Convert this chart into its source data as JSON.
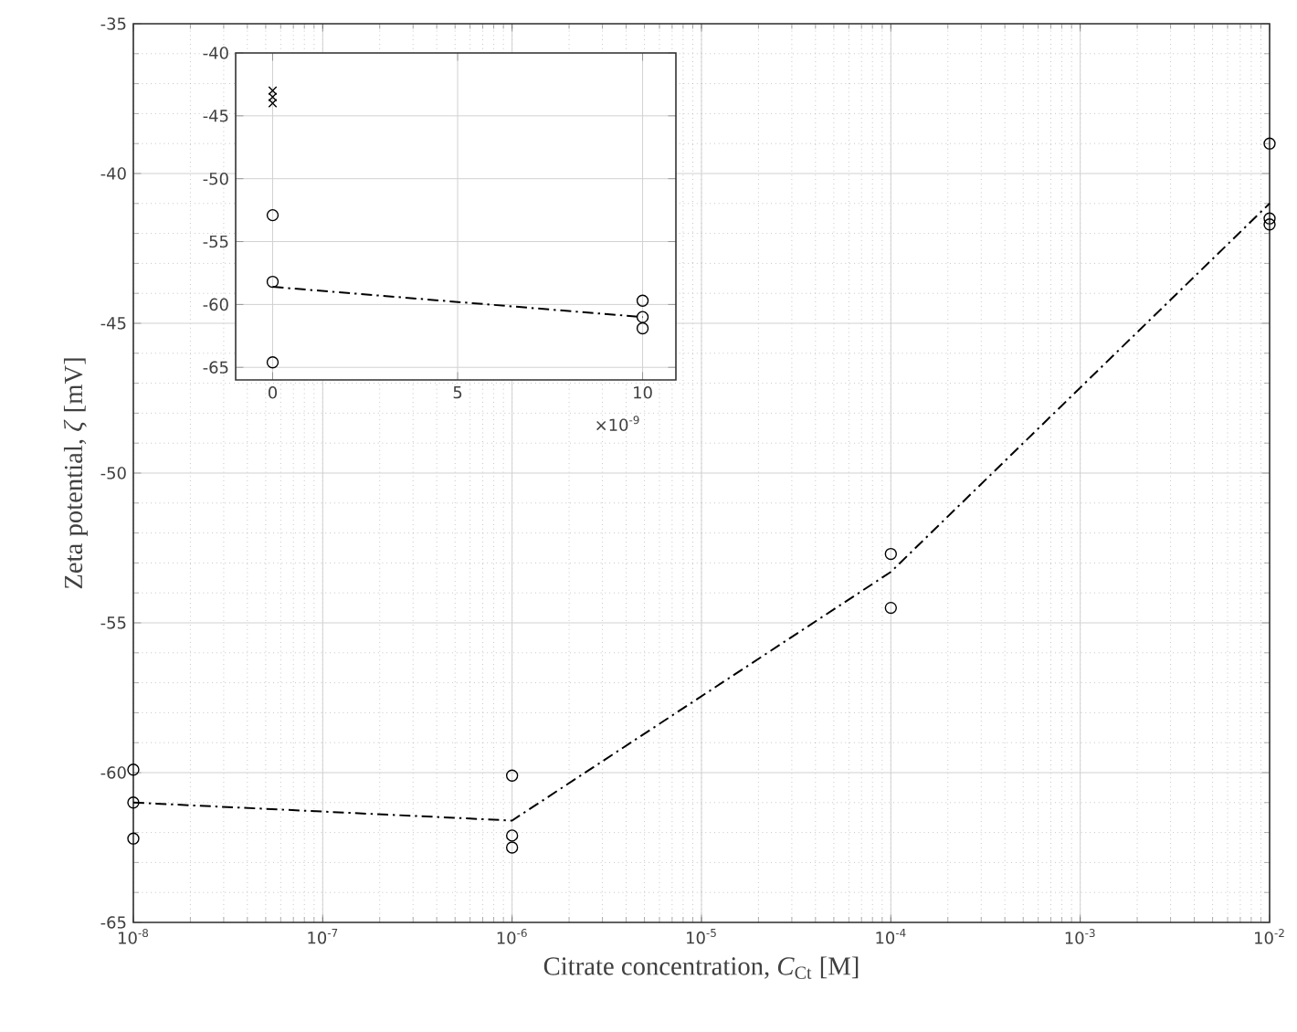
{
  "chart_data": [
    {
      "type": "scatter",
      "xlabel": "Citrate concentration, *C*$_{Ct}$ [M]",
      "ylabel": "Zeta potential, *ζ* [mV]",
      "log": "x",
      "grid": true,
      "xlim": [
        1e-08,
        0.01
      ],
      "ylim": [
        -65,
        -35
      ],
      "xticks": [
        {
          "value": 1e-08,
          "label": "10$^{-8}$"
        },
        {
          "value": 1e-07,
          "label": "10$^{-7}$"
        },
        {
          "value": 1e-06,
          "label": "10$^{-6}$"
        },
        {
          "value": 1e-05,
          "label": "10$^{-5}$"
        },
        {
          "value": 0.0001,
          "label": "10$^{-4}$"
        },
        {
          "value": 0.001,
          "label": "10$^{-3}$"
        },
        {
          "value": 0.01,
          "label": "10$^{-2}$"
        }
      ],
      "yticks": [
        -65,
        -60,
        -55,
        -50,
        -45,
        -40,
        -35
      ],
      "series": [
        {
          "marker": "circle",
          "color": "#000000",
          "x": [
            1e-08,
            1e-08,
            1e-08,
            1e-06,
            1e-06,
            1e-06,
            0.0001,
            0.0001,
            0.01,
            0.01,
            0.01
          ],
          "values": [
            -59.9,
            -61.0,
            -62.2,
            -60.1,
            -62.1,
            -62.5,
            -52.7,
            -54.5,
            -39.0,
            -41.5,
            -41.7
          ]
        },
        {
          "type": "line",
          "line_style": "dashdot",
          "color": "#000000",
          "x": [
            1e-08,
            1e-06,
            0.0001,
            0.01
          ],
          "values": [
            -61.0,
            -61.6,
            -53.3,
            -41.0
          ]
        }
      ]
    },
    {
      "type": "scatter",
      "grid": true,
      "xlim": [
        -1,
        10.9
      ],
      "ylim": [
        -66,
        -40
      ],
      "xticks": [
        0,
        5,
        10
      ],
      "yticks": [
        -65,
        -60,
        -55,
        -50,
        -45,
        -40
      ],
      "annotations": [
        "×10$^{-9}$"
      ],
      "series": [
        {
          "marker": "cross",
          "color": "#000000",
          "x": [
            0,
            0,
            0
          ],
          "values": [
            -43.0,
            -43.5,
            -44.0
          ]
        },
        {
          "marker": "circle",
          "color": "#000000",
          "x": [
            0,
            0,
            0,
            10,
            10,
            10
          ],
          "values": [
            -52.9,
            -58.2,
            -64.6,
            -59.7,
            -61.0,
            -61.9
          ]
        },
        {
          "type": "line",
          "line_style": "dashdot",
          "color": "#000000",
          "x": [
            0,
            10
          ],
          "values": [
            -58.6,
            -61.0
          ]
        }
      ]
    }
  ]
}
